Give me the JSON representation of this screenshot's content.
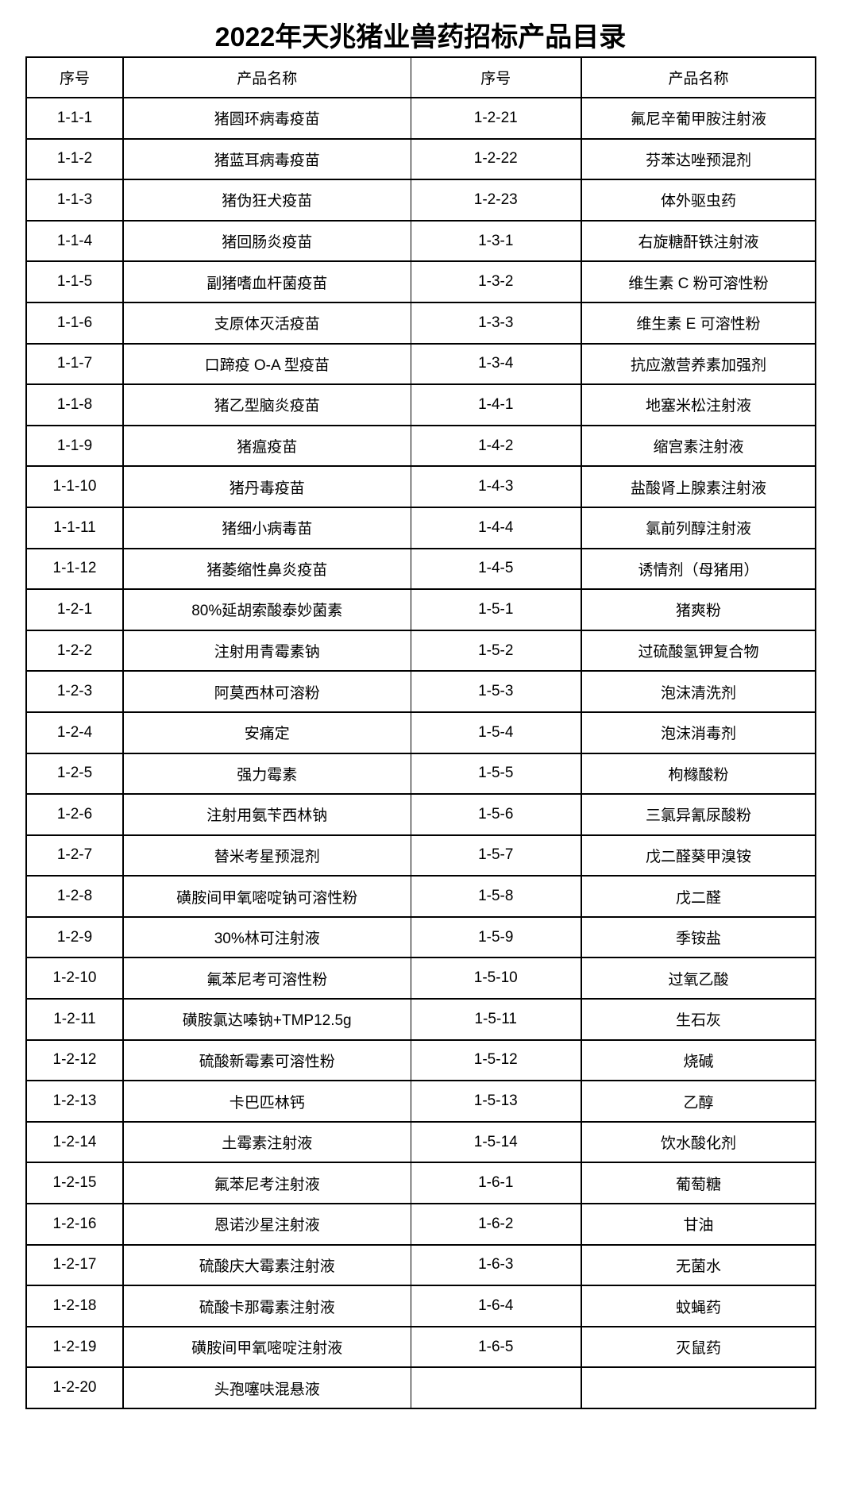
{
  "title": "2022年天兆猪业兽药招标产品目录",
  "headers": [
    "序号",
    "产品名称",
    "序号",
    "产品名称"
  ],
  "rows": [
    [
      "1-1-1",
      "猪圆环病毒疫苗",
      "1-2-21",
      "氟尼辛葡甲胺注射液"
    ],
    [
      "1-1-2",
      "猪蓝耳病毒疫苗",
      "1-2-22",
      "芬苯达唑预混剂"
    ],
    [
      "1-1-3",
      "猪伪狂犬疫苗",
      "1-2-23",
      "体外驱虫药"
    ],
    [
      "1-1-4",
      "猪回肠炎疫苗",
      "1-3-1",
      "右旋糖酐铁注射液"
    ],
    [
      "1-1-5",
      "副猪嗜血杆菌疫苗",
      "1-3-2",
      "维生素 C 粉可溶性粉"
    ],
    [
      "1-1-6",
      "支原体灭活疫苗",
      "1-3-3",
      "维生素 E 可溶性粉"
    ],
    [
      "1-1-7",
      "口蹄疫 O-A 型疫苗",
      "1-3-4",
      "抗应激营养素加强剂"
    ],
    [
      "1-1-8",
      "猪乙型脑炎疫苗",
      "1-4-1",
      "地塞米松注射液"
    ],
    [
      "1-1-9",
      "猪瘟疫苗",
      "1-4-2",
      "缩宫素注射液"
    ],
    [
      "1-1-10",
      "猪丹毒疫苗",
      "1-4-3",
      "盐酸肾上腺素注射液"
    ],
    [
      "1-1-11",
      "猪细小病毒苗",
      "1-4-4",
      "氯前列醇注射液"
    ],
    [
      "1-1-12",
      "猪萎缩性鼻炎疫苗",
      "1-4-5",
      "诱情剂（母猪用）"
    ],
    [
      "1-2-1",
      "80%延胡索酸泰妙菌素",
      "1-5-1",
      "猪爽粉"
    ],
    [
      "1-2-2",
      "注射用青霉素钠",
      "1-5-2",
      "过硫酸氢钾复合物"
    ],
    [
      "1-2-3",
      "阿莫西林可溶粉",
      "1-5-3",
      "泡沫清洗剂"
    ],
    [
      "1-2-4",
      "安痛定",
      "1-5-4",
      "泡沫消毒剂"
    ],
    [
      "1-2-5",
      "强力霉素",
      "1-5-5",
      "枸橼酸粉"
    ],
    [
      "1-2-6",
      "注射用氨苄西林钠",
      "1-5-6",
      "三氯异氰尿酸粉"
    ],
    [
      "1-2-7",
      "替米考星预混剂",
      "1-5-7",
      "戊二醛葵甲溴铵"
    ],
    [
      "1-2-8",
      "磺胺间甲氧嘧啶钠可溶性粉",
      "1-5-8",
      "戊二醛"
    ],
    [
      "1-2-9",
      "30%林可注射液",
      "1-5-9",
      "季铵盐"
    ],
    [
      "1-2-10",
      "氟苯尼考可溶性粉",
      "1-5-10",
      "过氧乙酸"
    ],
    [
      "1-2-11",
      "磺胺氯达嗪钠+TMP12.5g",
      "1-5-11",
      "生石灰"
    ],
    [
      "1-2-12",
      "硫酸新霉素可溶性粉",
      "1-5-12",
      "烧碱"
    ],
    [
      "1-2-13",
      "卡巴匹林钙",
      "1-5-13",
      "乙醇"
    ],
    [
      "1-2-14",
      "土霉素注射液",
      "1-5-14",
      "饮水酸化剂"
    ],
    [
      "1-2-15",
      "氟苯尼考注射液",
      "1-6-1",
      "葡萄糖"
    ],
    [
      "1-2-16",
      "恩诺沙星注射液",
      "1-6-2",
      "甘油"
    ],
    [
      "1-2-17",
      "硫酸庆大霉素注射液",
      "1-6-3",
      "无菌水"
    ],
    [
      "1-2-18",
      "硫酸卡那霉素注射液",
      "1-6-4",
      "蚊蝇药"
    ],
    [
      "1-2-19",
      "磺胺间甲氧嘧啶注射液",
      "1-6-5",
      "灭鼠药"
    ],
    [
      "1-2-20",
      "头孢噻呋混悬液",
      "",
      ""
    ]
  ]
}
